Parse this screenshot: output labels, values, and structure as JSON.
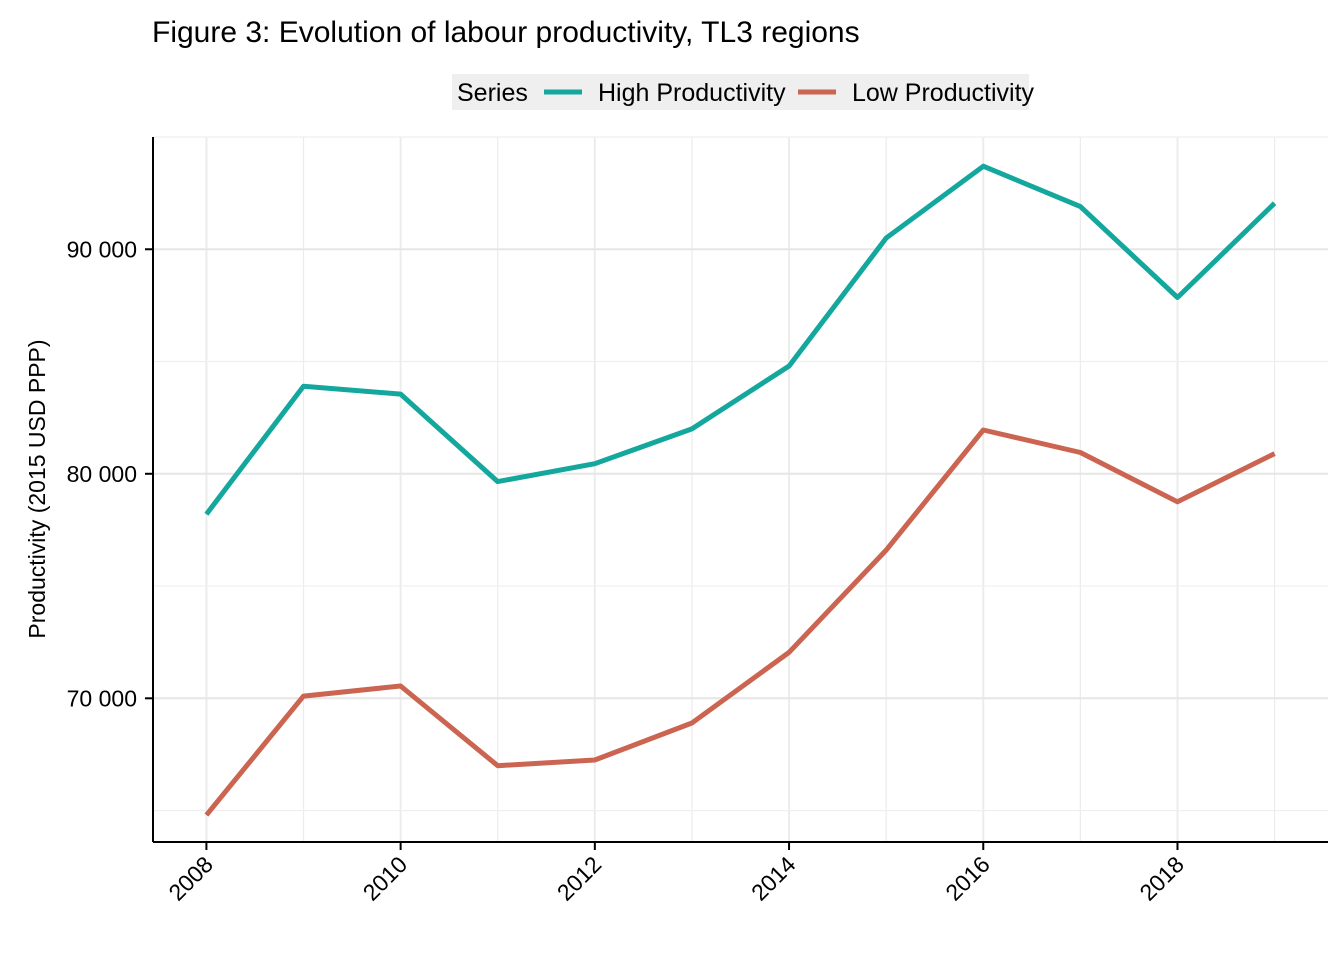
{
  "chart_data": {
    "type": "line",
    "title": "Figure 3: Evolution of labour productivity, TL3 regions",
    "xlabel": "",
    "ylabel": "Productivity (2015 USD PPP)",
    "legend": {
      "title": "Series",
      "placement": "top"
    },
    "x": [
      2008,
      2009,
      2010,
      2011,
      2012,
      2013,
      2014,
      2015,
      2016,
      2017,
      2018,
      2019
    ],
    "x_ticks": [
      "2008",
      "2010",
      "2012",
      "2014",
      "2016",
      "2018"
    ],
    "y_ticks": [
      "70 000",
      "80 000",
      "90 000"
    ],
    "y_tick_values": [
      70000,
      80000,
      90000
    ],
    "xlim": [
      2007.45,
      2019.55
    ],
    "ylim": [
      63600,
      95000
    ],
    "grid": true,
    "series": [
      {
        "name": "High Productivity",
        "color": "#14A79D",
        "values": [
          78200,
          83900,
          83550,
          79650,
          80450,
          82000,
          84800,
          90500,
          93700,
          91900,
          87850,
          92050
        ]
      },
      {
        "name": "Low Productivity",
        "color": "#CB6551",
        "values": [
          64800,
          70100,
          70550,
          67000,
          67250,
          68900,
          72050,
          76600,
          81950,
          80950,
          78750,
          80900
        ]
      }
    ]
  }
}
